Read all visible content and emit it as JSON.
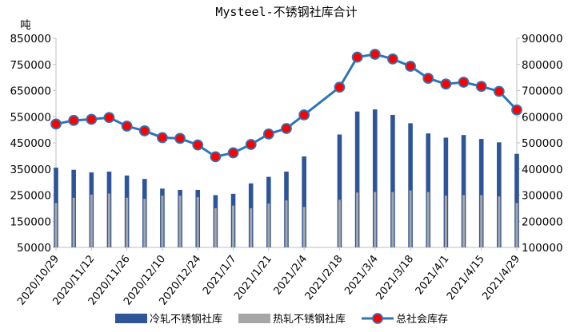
{
  "chart_data": {
    "type": "bar",
    "title": "Mysteel-不锈钢社库合计",
    "left_unit": "吨",
    "y_left": {
      "min": 50000,
      "max": 850000,
      "ticks": [
        50000,
        150000,
        250000,
        350000,
        450000,
        550000,
        650000,
        750000,
        850000
      ]
    },
    "y_right": {
      "min": 100000,
      "max": 900000,
      "ticks": [
        100000,
        200000,
        300000,
        400000,
        500000,
        600000,
        700000,
        800000,
        900000
      ]
    },
    "x_tick_labels": [
      "2020/10/29",
      "2020/11/12",
      "2020/11/26",
      "2020/12/10",
      "2020/12/24",
      "2021/1/7",
      "2021/1/21",
      "2021/2/4",
      "2021/2/18",
      "2021/3/4",
      "2021/3/18",
      "2021/4/1",
      "2021/4/15",
      "2021/4/29"
    ],
    "x_tick_indices": [
      0,
      2,
      4,
      6,
      8,
      10,
      12,
      14,
      16,
      18,
      20,
      22,
      24,
      26
    ],
    "series": [
      {
        "name": "冷轧不锈钢社库",
        "axis": "left",
        "render": "bar",
        "color": "#2e5597",
        "values": [
          355000,
          347000,
          337000,
          340000,
          325000,
          312000,
          275000,
          270000,
          270000,
          250000,
          255000,
          295000,
          320000,
          340000,
          398000,
          null,
          482000,
          570000,
          578000,
          557000,
          525000,
          486000,
          470000,
          480000,
          465000,
          452000,
          408000
        ]
      },
      {
        "name": "热轧不锈钢社库",
        "axis": "left",
        "render": "bar",
        "color": "#a6a6a6",
        "values": [
          220000,
          240000,
          252000,
          256000,
          240000,
          236000,
          248000,
          248000,
          242000,
          200000,
          210000,
          200000,
          218000,
          230000,
          205000,
          null,
          232000,
          260000,
          262000,
          262000,
          268000,
          262000,
          248000,
          250000,
          250000,
          245000,
          220000
        ]
      },
      {
        "name": "总社会库存",
        "axis": "right",
        "render": "line",
        "color": "#2e75b6",
        "marker_color": "#ff0000",
        "values": [
          572000,
          586000,
          590000,
          597000,
          564000,
          546000,
          520000,
          517000,
          492000,
          447000,
          462000,
          494000,
          534000,
          555000,
          607000,
          null,
          713000,
          828000,
          839000,
          821000,
          793000,
          747000,
          725000,
          732000,
          716000,
          697000,
          626000
        ]
      }
    ],
    "legend_position": "bottom"
  }
}
